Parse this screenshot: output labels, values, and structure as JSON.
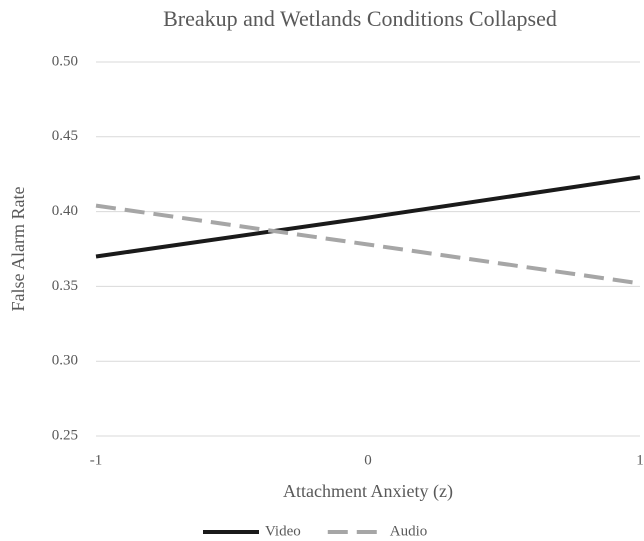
{
  "chart_data": {
    "type": "line",
    "title": "Breakup and Wetlands Conditions Collapsed",
    "x_label": "Attachment Anxiety (z)",
    "y_label": "False Alarm Rate",
    "x": [
      -1,
      0,
      1
    ],
    "series": [
      {
        "name": "Video",
        "color": "#1a1a1a",
        "dash": "solid",
        "values": [
          0.37,
          0.396,
          0.423
        ]
      },
      {
        "name": "Audio",
        "color": "#a6a6a6",
        "dash": "dashed",
        "values": [
          0.404,
          0.378,
          0.352
        ]
      }
    ],
    "xlim": [
      -1,
      1
    ],
    "xticks": [
      -1,
      0,
      1
    ],
    "ylim": [
      0.25,
      0.5
    ],
    "yticks": [
      0.25,
      {
        "value": 0.3,
        "label": "0.30"
      },
      0.35,
      {
        "value": 0.4,
        "label": "0.40"
      },
      0.45,
      {
        "value": 0.5,
        "label": "0.50"
      }
    ],
    "grid": true,
    "legend": "bottom"
  }
}
